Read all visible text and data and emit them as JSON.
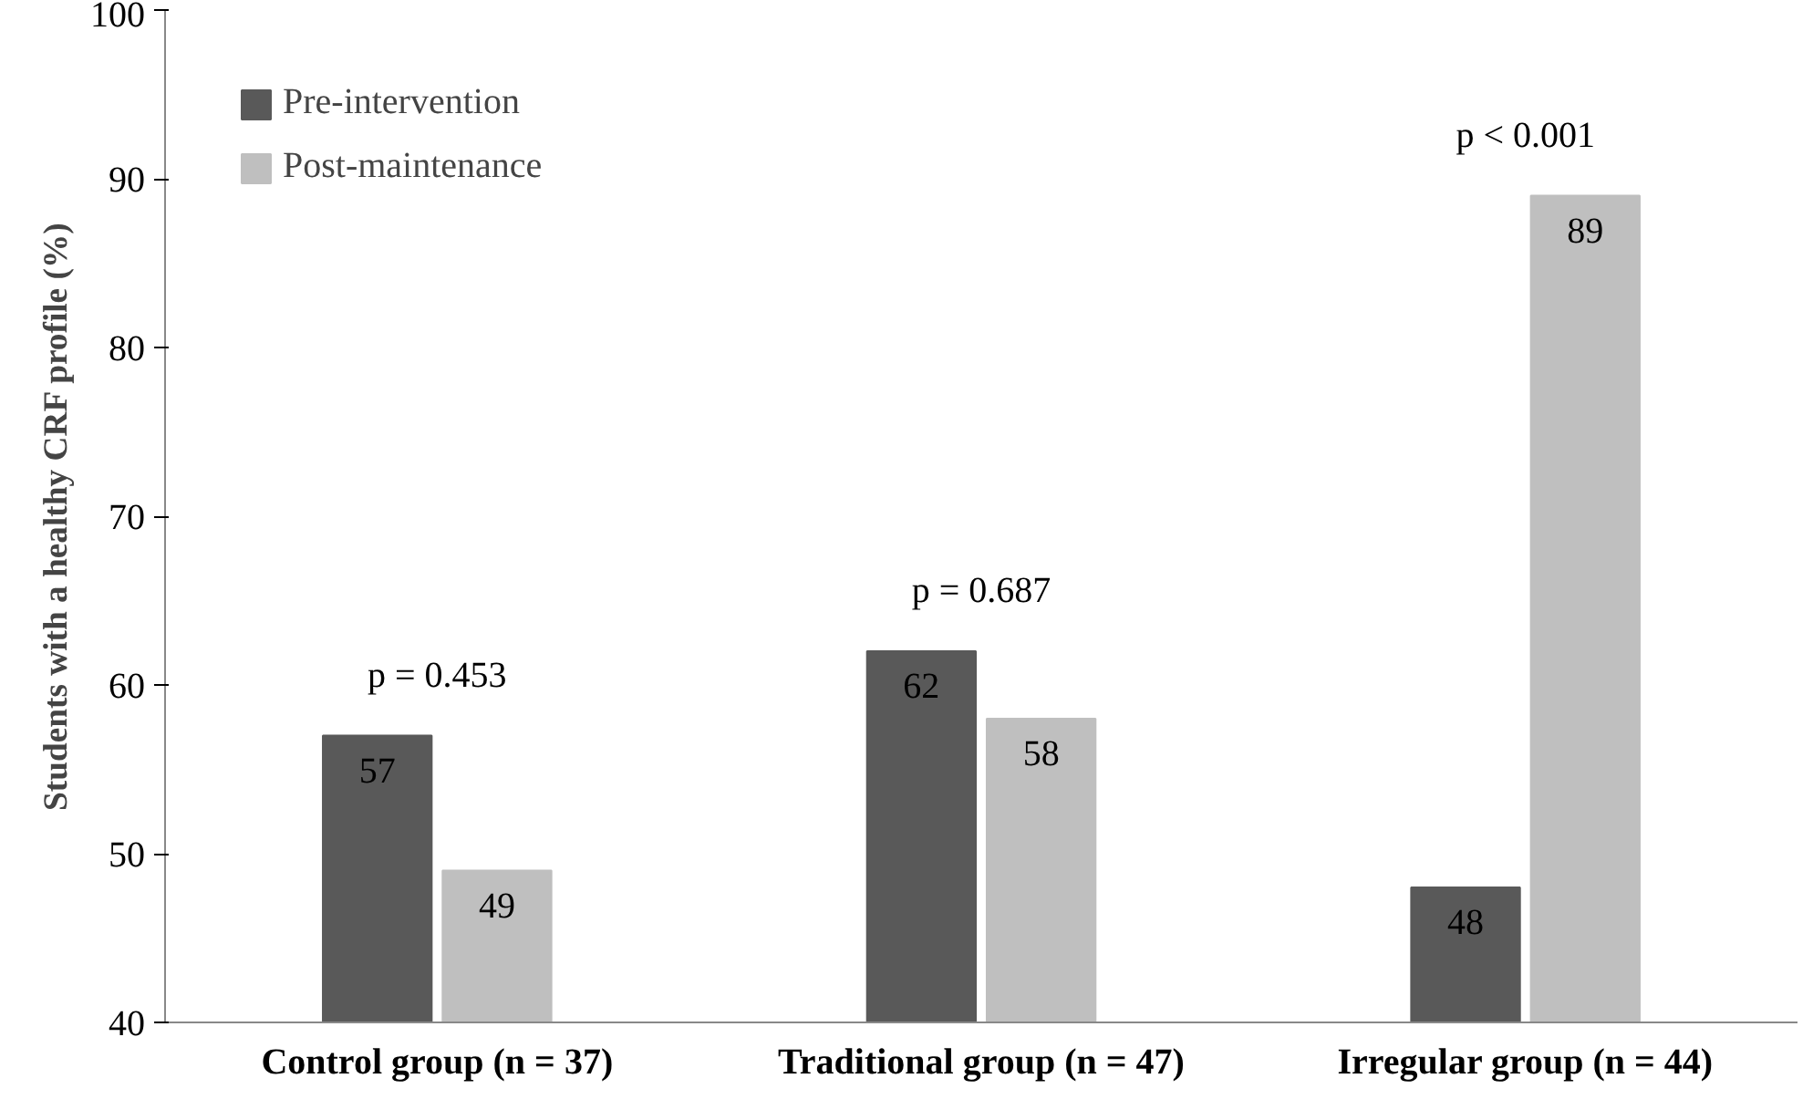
{
  "chart_data": {
    "type": "bar",
    "ylabel": "Students with a healthy CRF profile (%)",
    "categories": [
      "Control group (n = 37)",
      "Traditional group (n = 47)",
      "Irregular group (n = 44)"
    ],
    "series": [
      {
        "name": "Pre-intervention",
        "color": "#595959",
        "values": [
          57,
          62,
          48
        ]
      },
      {
        "name": "Post-maintenance",
        "color": "#bfbfbf",
        "values": [
          49,
          58,
          89
        ]
      }
    ],
    "ylim": [
      40,
      100
    ],
    "yticks": [
      40,
      50,
      60,
      70,
      80,
      90,
      100
    ],
    "grid": false,
    "legend": "top left",
    "data_labels": true,
    "annotations": [
      "p = 0.453",
      "p = 0.687",
      "p < 0.001"
    ]
  }
}
